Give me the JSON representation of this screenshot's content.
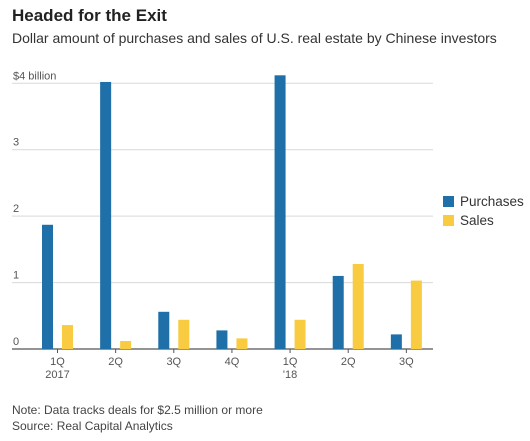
{
  "title": "Headed for the Exit",
  "subtitle": "Dollar amount of purchases and sales of U.S. real estate by Chinese investors",
  "colors": {
    "purchases": "#1f6fa8",
    "sales": "#f9cb40"
  },
  "chart_data": {
    "type": "bar",
    "categories": [
      "1Q\n2017",
      "2Q",
      "3Q",
      "4Q",
      "1Q\n'18",
      "2Q",
      "3Q"
    ],
    "series": [
      {
        "name": "Purchases",
        "values": [
          1.87,
          4.02,
          0.56,
          0.28,
          4.12,
          1.1,
          0.22
        ]
      },
      {
        "name": "Sales",
        "values": [
          0.36,
          0.12,
          0.44,
          0.16,
          0.44,
          1.28,
          1.03
        ]
      }
    ],
    "yticks": [
      {
        "value": 0,
        "label": "0"
      },
      {
        "value": 1,
        "label": "1"
      },
      {
        "value": 2,
        "label": "2"
      },
      {
        "value": 3,
        "label": "3"
      },
      {
        "value": 4,
        "label": "$4 billion"
      }
    ],
    "ylim": [
      0,
      4.2
    ],
    "grid": true,
    "legend_position": "right"
  },
  "notes": {
    "note": "Note: Data tracks deals for $2.5 million or more",
    "source": "Source: Real Capital Analytics"
  }
}
